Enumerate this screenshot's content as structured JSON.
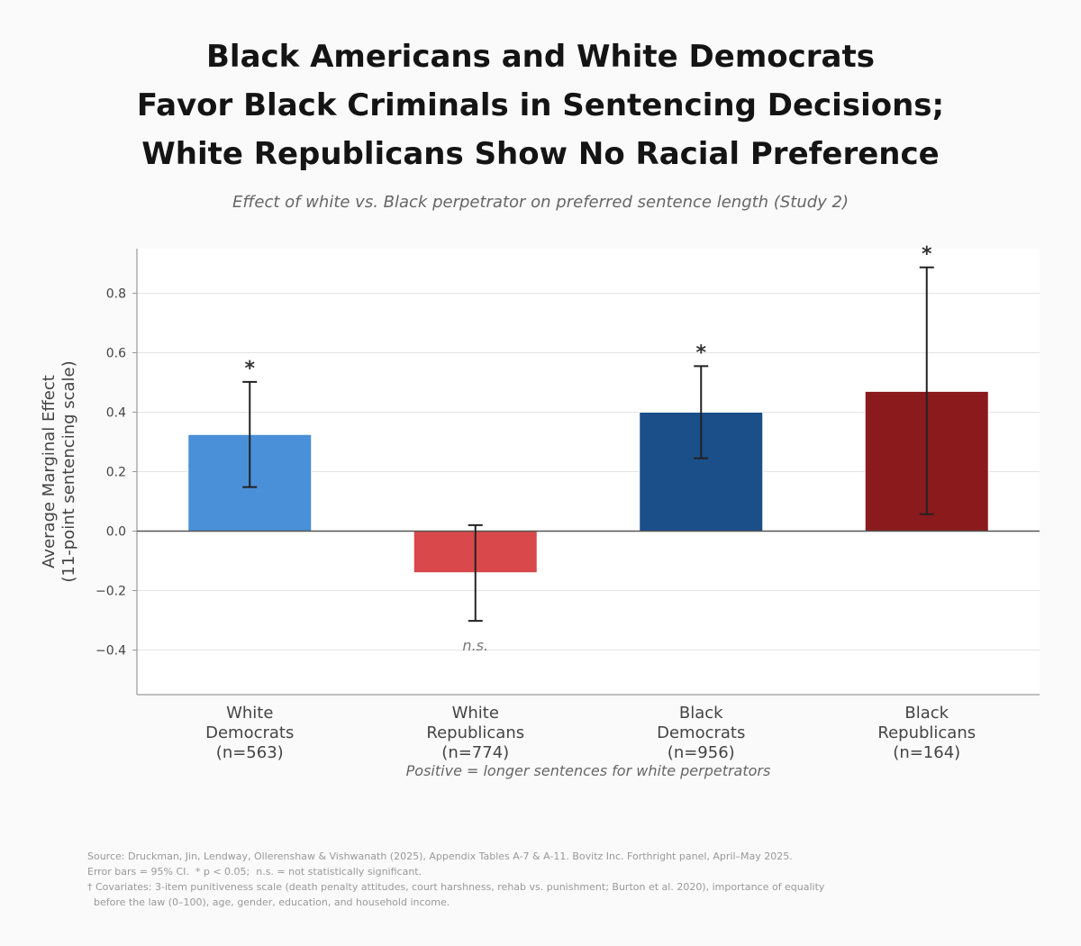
{
  "title_lines": [
    "Black Americans and White Democrats",
    "Favor Black Criminals in Sentencing Decisions;",
    "White Republicans Show No Racial Preference"
  ],
  "subtitle": "Effect of white vs. Black perpetrator on preferred sentence length (Study 2)",
  "colors": {
    "white_democrats": "#4a90d9",
    "white_republicans": "#d9484a",
    "black_democrats": "#1b4f8a",
    "black_republicans": "#8b1a1c"
  },
  "chart_data": {
    "type": "bar",
    "categories": [
      [
        "White",
        "Democrats",
        "(n=563)"
      ],
      [
        "White",
        "Republicans",
        "(n=774)"
      ],
      [
        "Black",
        "Democrats",
        "(n=956)"
      ],
      [
        "Black",
        "Republicans",
        "(n=164)"
      ]
    ],
    "values": [
      0.325,
      -0.14,
      0.4,
      0.47
    ],
    "ci_low": [
      0.148,
      -0.302,
      0.245,
      0.057
    ],
    "ci_high": [
      0.502,
      0.02,
      0.555,
      0.887
    ],
    "annotations": [
      "*",
      "n.s.",
      "*",
      "*"
    ],
    "ylabel": [
      "Average Marginal Effect",
      "(11-point sentencing scale)"
    ],
    "xlabel": "Positive = longer sentences for white perpetrators",
    "ylim": [
      -0.55,
      0.95
    ],
    "yticks": [
      -0.4,
      -0.2,
      0.0,
      0.2,
      0.4,
      0.6,
      0.8
    ],
    "ytick_labels": [
      "−0.4",
      "−0.2",
      "0.0",
      "0.2",
      "0.4",
      "0.6",
      "0.8"
    ],
    "grid": "horizontal"
  },
  "footer": [
    "Source: Druckman, Jin, Lendway, Ollerenshaw & Vishwanath (2025), Appendix Tables A-7 & A-11. Bovitz Inc. Forthright panel, April–May 2025.",
    "Error bars = 95% CI.  * p < 0.05;  n.s. = not statistically significant.",
    "† Covariates: 3-item punitiveness scale (death penalty attitudes, court harshness, rehab vs. punishment; Burton et al. 2020), importance of equality",
    "  before the law (0–100), age, gender, education, and household income."
  ]
}
